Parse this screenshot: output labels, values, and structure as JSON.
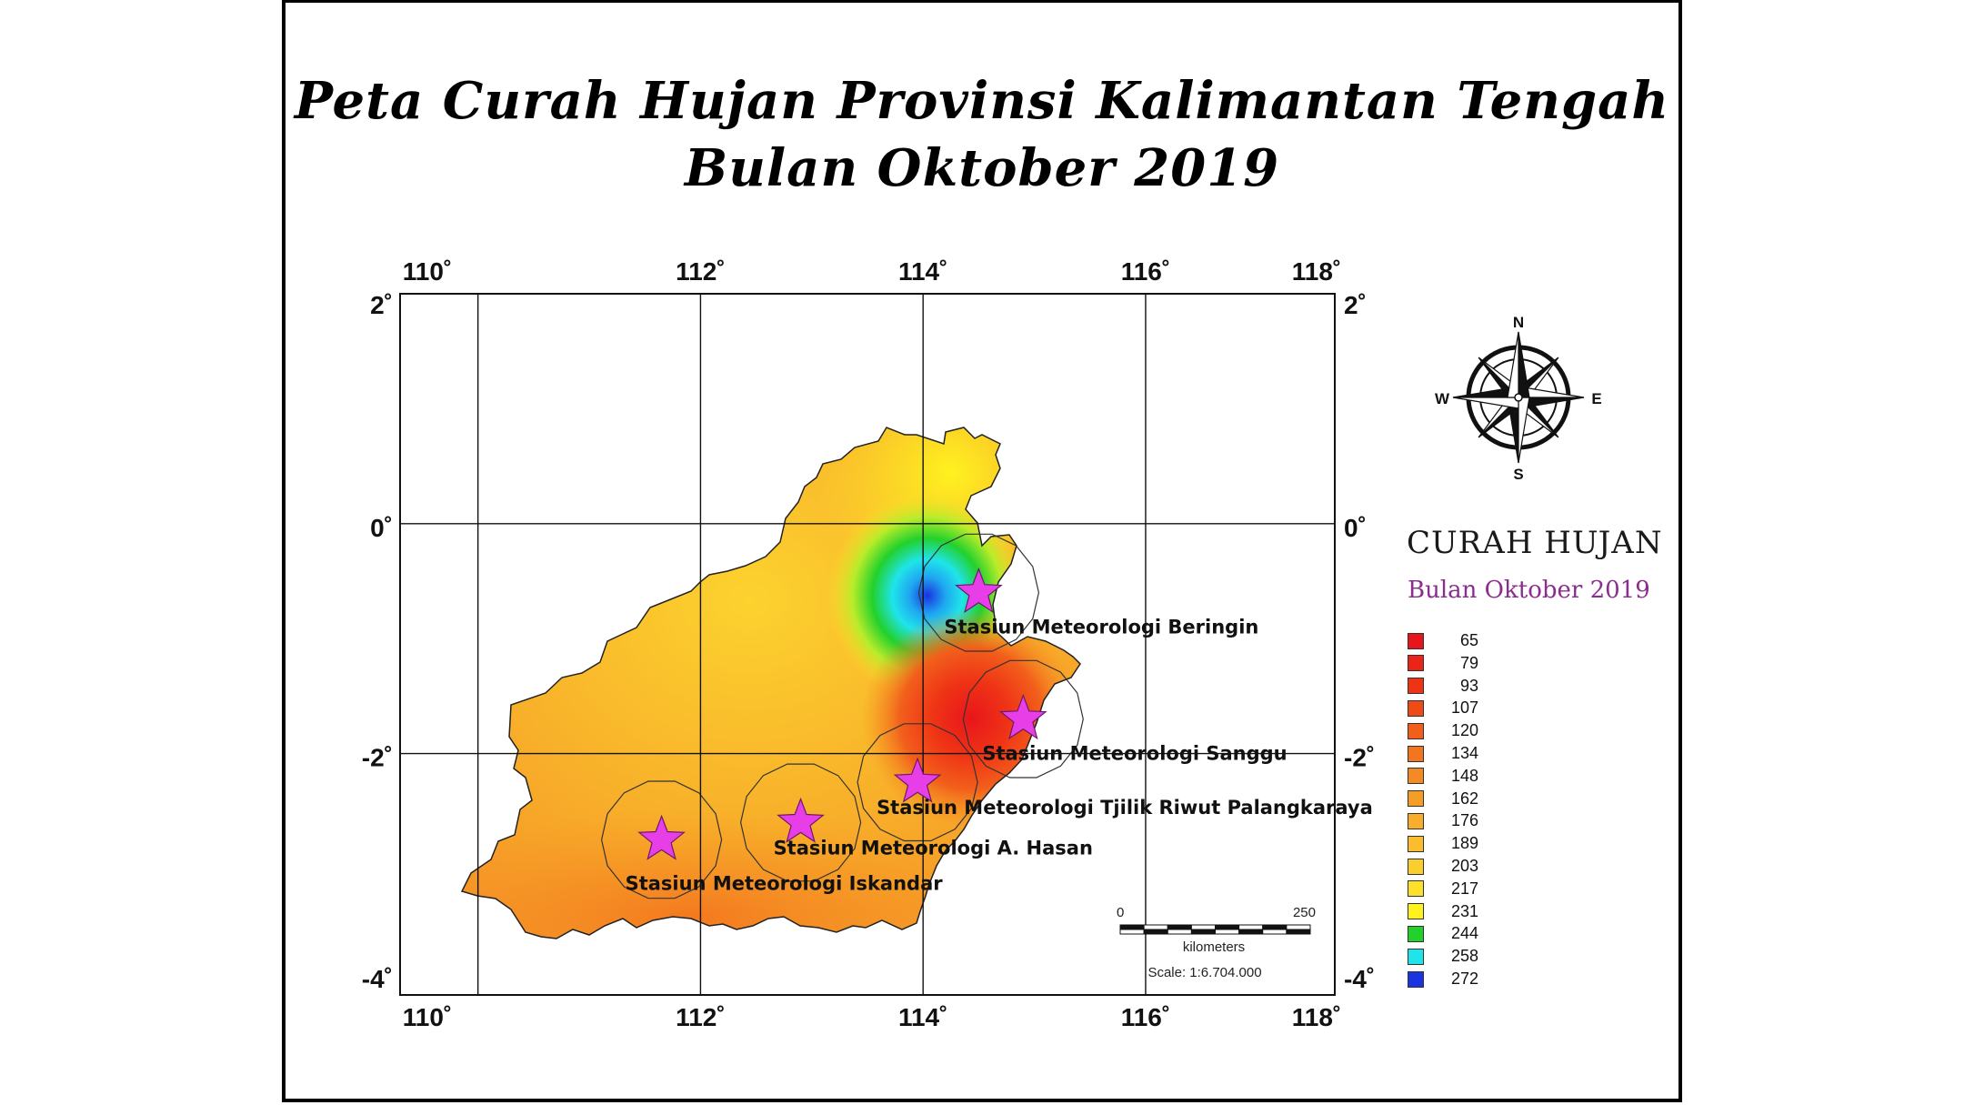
{
  "title_line1": "Peta Curah Hujan Provinsi Kalimantan Tengah",
  "title_line2": "Bulan Oktober 2019",
  "axes": {
    "top": [
      "110˚",
      "112˚",
      "114˚",
      "116˚",
      "118˚"
    ],
    "bottom": [
      "110˚",
      "112˚",
      "114˚",
      "116˚",
      "118˚"
    ],
    "left": [
      "2˚",
      "0˚",
      "-2˚",
      "-4˚"
    ],
    "right": [
      "2˚",
      "0˚",
      "-2˚",
      "-4˚"
    ]
  },
  "stations": [
    {
      "name": "Stasiun Meteorologi Beringin",
      "lon": 114.5,
      "lat": -0.6
    },
    {
      "name": "Stasiun Meteorologi Sanggu",
      "lon": 114.9,
      "lat": -1.7
    },
    {
      "name": "Stasiun Meteorologi  Tjilik Riwut Palangkaraya",
      "lon": 113.95,
      "lat": -2.25
    },
    {
      "name": "Stasiun Meteorologi A. Hasan",
      "lon": 112.9,
      "lat": -2.6
    },
    {
      "name": "Stasiun Meteorologi Iskandar",
      "lon": 111.65,
      "lat": -2.75
    }
  ],
  "compass": {
    "n": "N",
    "s": "S",
    "e": "E",
    "w": "W"
  },
  "scale_bar": {
    "start": "0",
    "end": "250",
    "unit": "kilometers",
    "scale": "Scale: 1:6.704.000"
  },
  "legend": {
    "title": "CURAH HUJAN",
    "subtitle": "Bulan Oktober 2019",
    "items": [
      {
        "value": "65",
        "color": "#e8151b"
      },
      {
        "value": "79",
        "color": "#ec2418"
      },
      {
        "value": "93",
        "color": "#ef3416"
      },
      {
        "value": "107",
        "color": "#f04a17"
      },
      {
        "value": "120",
        "color": "#f25f1b"
      },
      {
        "value": "134",
        "color": "#f3751f"
      },
      {
        "value": "148",
        "color": "#f48a22"
      },
      {
        "value": "162",
        "color": "#f69d26"
      },
      {
        "value": "176",
        "color": "#f8ae2a"
      },
      {
        "value": "189",
        "color": "#fabe2c"
      },
      {
        "value": "203",
        "color": "#fcce2d"
      },
      {
        "value": "217",
        "color": "#fde02a"
      },
      {
        "value": "231",
        "color": "#fff21e"
      },
      {
        "value": "244",
        "color": "#22d12c"
      },
      {
        "value": "258",
        "color": "#1fe4ea"
      },
      {
        "value": "272",
        "color": "#1b33e0"
      }
    ]
  },
  "star_color": "#e83ee8"
}
